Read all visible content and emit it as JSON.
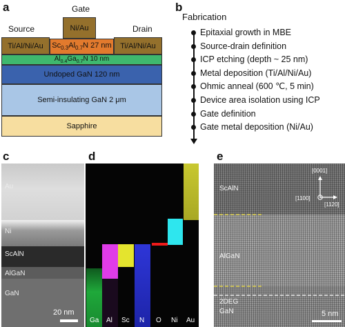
{
  "panels": {
    "a": "a",
    "b": "b",
    "c": "c",
    "d": "d",
    "e": "e"
  },
  "device": {
    "gate_label": "Gate",
    "source_label": "Source",
    "drain_label": "Drain",
    "gate_metal": "Ni/Au",
    "source_metal": "Ti/Al/Ni/Au",
    "drain_metal": "Ti/Al/Ni/Au",
    "barrier_prefix": "Sc",
    "barrier_sub1": "0.3",
    "barrier_mid": "Al",
    "barrier_sub2": "0.7",
    "barrier_suffix": "N 27 nm",
    "interlayer_prefix": "Al",
    "interlayer_sub1": "0.4",
    "interlayer_mid": "Ga",
    "interlayer_sub2": "0.7",
    "interlayer_suffix": "N 10 nm",
    "channel": "Undoped GaN 120 nm",
    "buffer": "Semi-insulating GaN 2 μm",
    "substrate": "Sapphire",
    "colors": {
      "metal": "#94702c",
      "barrier": "#e27a2d",
      "interlayer": "#3fb86e",
      "channel": "#3a62ad",
      "buffer": "#a9c6e6",
      "substrate": "#f7dea0"
    }
  },
  "fabrication": {
    "title": "Fabrication",
    "steps": [
      "Epitaxial growth in MBE",
      "Source-drain definition",
      "ICP etching (depth ~ 25 nm)",
      "Metal deposition (Ti/Al/Ni/Au)",
      "Ohmic anneal (600 ℃, 5 min)",
      "Device area isolation using ICP",
      "Gate definition",
      "Gate metal deposition (Ni/Au)"
    ]
  },
  "stem": {
    "layers": [
      "Au",
      "Ni",
      "ScAlN",
      "AlGaN",
      "GaN"
    ],
    "scale": "20 nm"
  },
  "eds": {
    "elements": [
      "Ga",
      "Al",
      "Sc",
      "N",
      "O",
      "Ni",
      "Au"
    ],
    "colors": {
      "Ga": "#1fa83a",
      "Al": "#e03ce8",
      "Sc": "#e4e42e",
      "N": "#2e36d8",
      "O": "#ee1a1a",
      "Ni": "#2ee6ee",
      "Au": "#c8c830"
    }
  },
  "hrstem": {
    "layers": [
      "ScAlN",
      "AlGaN",
      "2DEG",
      "GaN"
    ],
    "dir_up": "[0001]",
    "dir_left": "[1100]",
    "dir_right": "[1120]",
    "scale": "5 nm"
  }
}
